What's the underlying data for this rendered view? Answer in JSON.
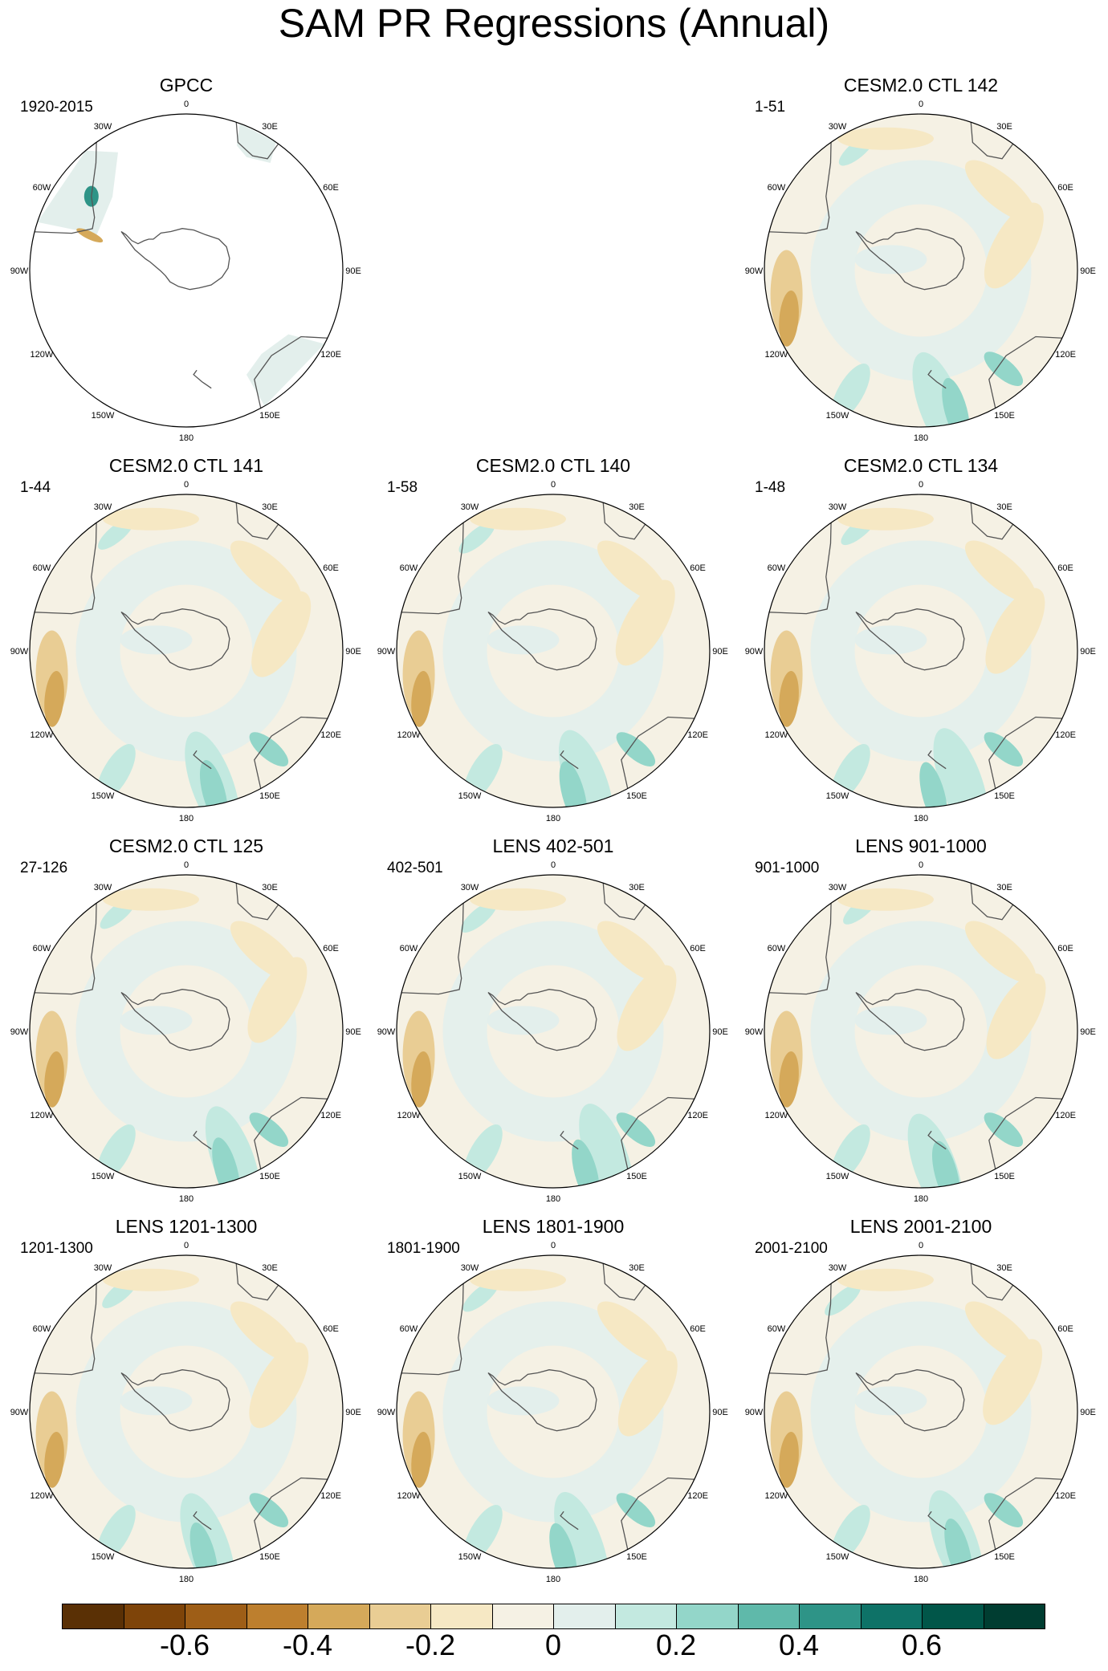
{
  "title": "SAM PR Regressions (Annual)",
  "longitude_labels": [
    "0",
    "30E",
    "60E",
    "90E",
    "120E",
    "150E",
    "180",
    "150W",
    "120W",
    "90W",
    "60W",
    "30W"
  ],
  "panels": [
    {
      "title": "GPCC",
      "period": "1920-2015",
      "type": "obs"
    },
    {
      "title": "CESM2.0 CTL 142",
      "period": "1-51",
      "type": "model"
    },
    {
      "title": "CESM2.0 CTL 141",
      "period": "1-44",
      "type": "model"
    },
    {
      "title": "CESM2.0 CTL 140",
      "period": "1-58",
      "type": "model"
    },
    {
      "title": "CESM2.0 CTL 134",
      "period": "1-48",
      "type": "model"
    },
    {
      "title": "CESM2.0 CTL 125",
      "period": "27-126",
      "type": "model"
    },
    {
      "title": "LENS 402-501",
      "period": "402-501",
      "type": "model"
    },
    {
      "title": "LENS 901-1000",
      "period": "901-1000",
      "type": "model"
    },
    {
      "title": "LENS 1201-1300",
      "period": "1201-1300",
      "type": "model"
    },
    {
      "title": "LENS 1801-1900",
      "period": "1801-1900",
      "type": "model"
    },
    {
      "title": "LENS 2001-2100",
      "period": "2001-2100",
      "type": "model"
    }
  ],
  "colorbar": {
    "colors": [
      "#5a3005",
      "#7e4409",
      "#9e5e17",
      "#bd7f2e",
      "#d5a95a",
      "#e9cd94",
      "#f6e8c4",
      "#f5f1e4",
      "#e3efec",
      "#c3e9e0",
      "#93d6c9",
      "#5fb9aa",
      "#2e9487",
      "#0e7267",
      "#015649",
      "#003d31"
    ],
    "ticks": [
      "-0.6",
      "-0.4",
      "-0.2",
      "0",
      "0.2",
      "0.4",
      "0.6"
    ],
    "tick_values": [
      -0.6,
      -0.4,
      -0.2,
      0,
      0.2,
      0.4,
      0.6
    ],
    "levels_min": -0.8,
    "levels_max": 0.8
  }
}
